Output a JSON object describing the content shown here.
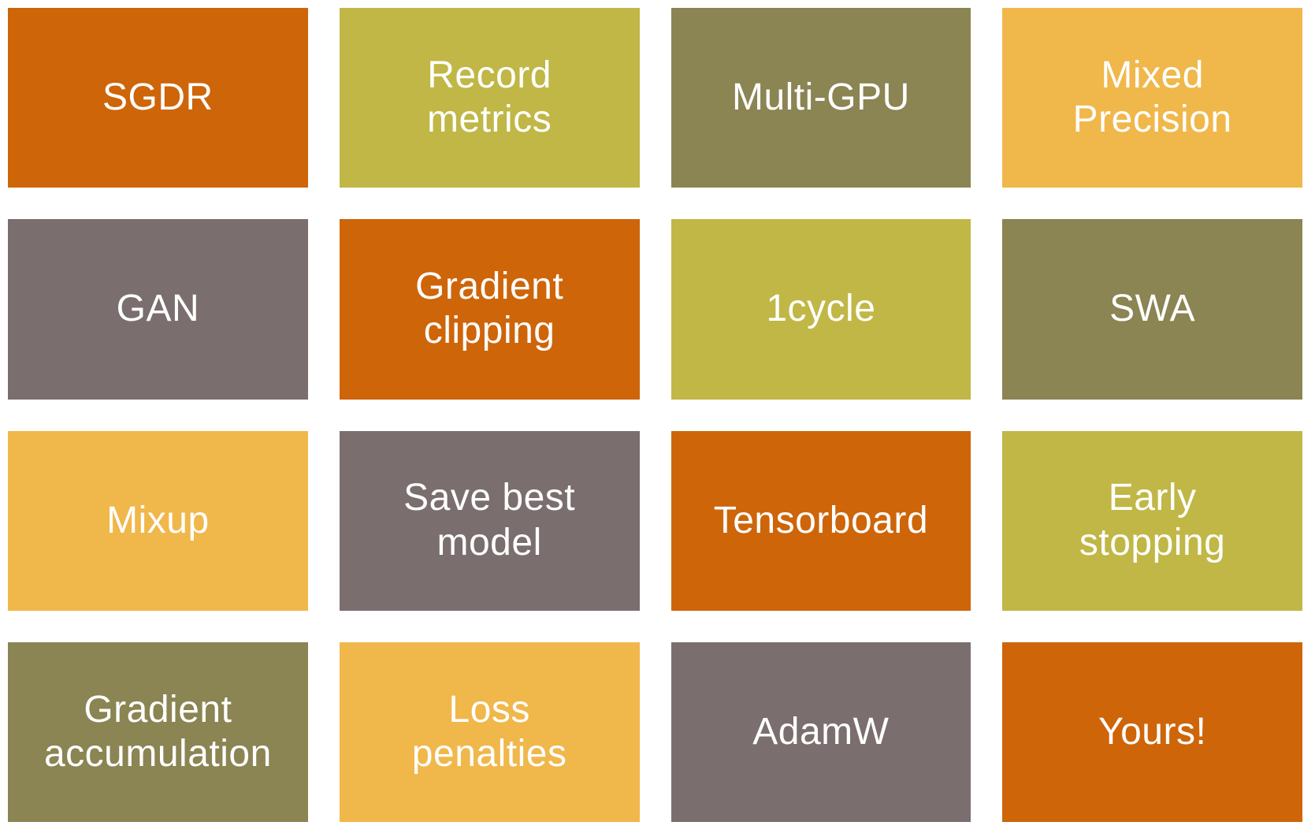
{
  "slide": {
    "background": "#FFFFFF",
    "text_color": "#FFFFFF",
    "palette": {
      "orange": "#CE6509",
      "yellow_green": "#C0B746",
      "olive": "#8B8453",
      "amber": "#F0B74A",
      "gray": "#7A6E6F"
    },
    "tiles": [
      {
        "label": "SGDR",
        "color": "orange"
      },
      {
        "label": "Record\nmetrics",
        "color": "yellow_green"
      },
      {
        "label": "Multi-GPU",
        "color": "olive"
      },
      {
        "label": "Mixed\nPrecision",
        "color": "amber"
      },
      {
        "label": "GAN",
        "color": "gray"
      },
      {
        "label": "Gradient\nclipping",
        "color": "orange"
      },
      {
        "label": "1cycle",
        "color": "yellow_green"
      },
      {
        "label": "SWA",
        "color": "olive"
      },
      {
        "label": "Mixup",
        "color": "amber"
      },
      {
        "label": "Save best\nmodel",
        "color": "gray"
      },
      {
        "label": "Tensorboard",
        "color": "orange"
      },
      {
        "label": "Early\nstopping",
        "color": "yellow_green"
      },
      {
        "label": "Gradient\naccumulation",
        "color": "olive"
      },
      {
        "label": "Loss\npenalties",
        "color": "amber"
      },
      {
        "label": "AdamW",
        "color": "gray"
      },
      {
        "label": "Yours!",
        "color": "orange"
      }
    ]
  }
}
